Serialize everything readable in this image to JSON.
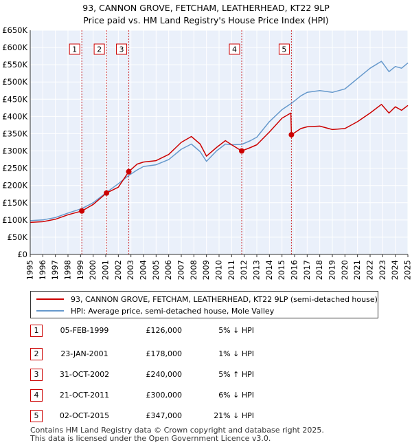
{
  "title_line1": "93, CANNON GROVE, FETCHAM, LEATHERHEAD, KT22 9LP",
  "title_line2": "Price paid vs. HM Land Registry's House Price Index (HPI)",
  "colors": {
    "price": "#cc0000",
    "hpi": "#6699cc",
    "plot_bg": "#eaf0fa",
    "marker": "#cc0000"
  },
  "legend": {
    "price": "93, CANNON GROVE, FETCHAM, LEATHERHEAD, KT22 9LP (semi-detached house)",
    "hpi": "HPI: Average price, semi-detached house, Mole Valley"
  },
  "transactions": [
    {
      "n": "1",
      "date": "05-FEB-1999",
      "price": "£126,000",
      "hpi": "5% ↓ HPI"
    },
    {
      "n": "2",
      "date": "23-JAN-2001",
      "price": "£178,000",
      "hpi": "1% ↓ HPI"
    },
    {
      "n": "3",
      "date": "31-OCT-2002",
      "price": "£240,000",
      "hpi": "5% ↑ HPI"
    },
    {
      "n": "4",
      "date": "21-OCT-2011",
      "price": "£300,000",
      "hpi": "6% ↓ HPI"
    },
    {
      "n": "5",
      "date": "02-OCT-2015",
      "price": "£347,000",
      "hpi": "21% ↓ HPI"
    }
  ],
  "footer_line1": "Contains HM Land Registry data © Crown copyright and database right 2025.",
  "footer_line2": "This data is licensed under the Open Government Licence v3.0.",
  "chart_data": {
    "type": "line",
    "xlim": [
      1995,
      2025
    ],
    "ylim": [
      0,
      650000
    ],
    "x_ticks": [
      "1995",
      "1996",
      "1997",
      "1998",
      "1999",
      "2000",
      "2001",
      "2002",
      "2003",
      "2004",
      "2005",
      "2006",
      "2007",
      "2008",
      "2009",
      "2010",
      "2011",
      "2012",
      "2013",
      "2014",
      "2015",
      "2016",
      "2017",
      "2018",
      "2019",
      "2020",
      "2021",
      "2022",
      "2023",
      "2024",
      "2025"
    ],
    "y_ticks": [
      {
        "v": 0,
        "label": "£0"
      },
      {
        "v": 50000,
        "label": "£50K"
      },
      {
        "v": 100000,
        "label": "£100K"
      },
      {
        "v": 150000,
        "label": "£150K"
      },
      {
        "v": 200000,
        "label": "£200K"
      },
      {
        "v": 250000,
        "label": "£250K"
      },
      {
        "v": 300000,
        "label": "£300K"
      },
      {
        "v": 350000,
        "label": "£350K"
      },
      {
        "v": 400000,
        "label": "£400K"
      },
      {
        "v": 450000,
        "label": "£450K"
      },
      {
        "v": 500000,
        "label": "£500K"
      },
      {
        "v": 550000,
        "label": "£550K"
      },
      {
        "v": 600000,
        "label": "£600K"
      },
      {
        "v": 650000,
        "label": "£650K"
      }
    ],
    "grid": true,
    "series": [
      {
        "name": "93, CANNON GROVE, FETCHAM, LEATHERHEAD, KT22 9LP (semi-detached house)",
        "points": [
          [
            1995,
            93000
          ],
          [
            1996,
            95000
          ],
          [
            1997,
            102000
          ],
          [
            1998,
            115000
          ],
          [
            1999.1,
            126000
          ],
          [
            2000,
            145000
          ],
          [
            2001.06,
            178000
          ],
          [
            2002,
            195000
          ],
          [
            2002.83,
            240000
          ],
          [
            2003.5,
            262000
          ],
          [
            2004,
            268000
          ],
          [
            2005,
            272000
          ],
          [
            2006,
            290000
          ],
          [
            2007,
            325000
          ],
          [
            2007.8,
            342000
          ],
          [
            2008.5,
            320000
          ],
          [
            2009,
            285000
          ],
          [
            2009.8,
            310000
          ],
          [
            2010.5,
            330000
          ],
          [
            2011,
            318000
          ],
          [
            2011.8,
            300000
          ],
          [
            2012.5,
            310000
          ],
          [
            2013,
            318000
          ],
          [
            2014,
            355000
          ],
          [
            2015,
            395000
          ],
          [
            2015.7,
            410000
          ],
          [
            2015.75,
            347000
          ],
          [
            2016.5,
            365000
          ],
          [
            2017,
            370000
          ],
          [
            2018,
            372000
          ],
          [
            2019,
            362000
          ],
          [
            2020,
            365000
          ],
          [
            2021,
            385000
          ],
          [
            2022,
            410000
          ],
          [
            2022.9,
            435000
          ],
          [
            2023.5,
            410000
          ],
          [
            2024,
            428000
          ],
          [
            2024.5,
            418000
          ],
          [
            2025,
            432000
          ]
        ]
      },
      {
        "name": "HPI: Average price, semi-detached house, Mole Valley",
        "points": [
          [
            1995,
            98000
          ],
          [
            1996,
            100000
          ],
          [
            1997,
            107000
          ],
          [
            1998,
            120000
          ],
          [
            1999.1,
            133000
          ],
          [
            2000,
            150000
          ],
          [
            2001.06,
            180000
          ],
          [
            2002,
            205000
          ],
          [
            2002.83,
            229000
          ],
          [
            2003.5,
            245000
          ],
          [
            2004,
            255000
          ],
          [
            2005,
            260000
          ],
          [
            2006,
            275000
          ],
          [
            2007,
            305000
          ],
          [
            2007.8,
            320000
          ],
          [
            2008.5,
            298000
          ],
          [
            2009,
            270000
          ],
          [
            2009.8,
            300000
          ],
          [
            2010.5,
            320000
          ],
          [
            2011,
            318000
          ],
          [
            2011.8,
            319000
          ],
          [
            2012.5,
            330000
          ],
          [
            2013,
            340000
          ],
          [
            2014,
            385000
          ],
          [
            2015,
            420000
          ],
          [
            2015.75,
            438000
          ],
          [
            2016.5,
            460000
          ],
          [
            2017,
            470000
          ],
          [
            2018,
            475000
          ],
          [
            2019,
            470000
          ],
          [
            2020,
            480000
          ],
          [
            2021,
            510000
          ],
          [
            2022,
            540000
          ],
          [
            2022.9,
            560000
          ],
          [
            2023.5,
            530000
          ],
          [
            2024,
            545000
          ],
          [
            2024.5,
            540000
          ],
          [
            2025,
            555000
          ]
        ]
      }
    ],
    "events": [
      {
        "label": "1",
        "x": 1999.1,
        "y": 126000
      },
      {
        "label": "2",
        "x": 2001.06,
        "y": 178000
      },
      {
        "label": "3",
        "x": 2002.83,
        "y": 240000
      },
      {
        "label": "4",
        "x": 2011.8,
        "y": 300000
      },
      {
        "label": "5",
        "x": 2015.75,
        "y": 347000
      }
    ]
  }
}
